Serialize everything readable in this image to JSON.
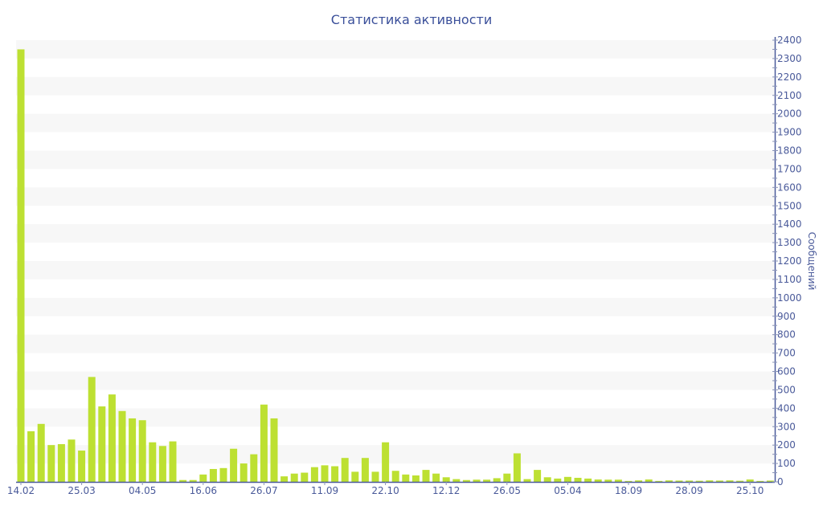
{
  "chart_data": {
    "type": "bar",
    "title": "Статистика активности",
    "ylabel": "Сообщений",
    "xlabel": "",
    "ylim": [
      0,
      2400
    ],
    "y_ticks": [
      0,
      100,
      200,
      300,
      400,
      500,
      600,
      700,
      800,
      900,
      1000,
      1100,
      1200,
      1300,
      1400,
      1500,
      1600,
      1700,
      1800,
      1900,
      2000,
      2100,
      2200,
      2300,
      2400
    ],
    "x_tick_labels": [
      {
        "index": 0,
        "label": "14.02"
      },
      {
        "index": 6,
        "label": "25.03"
      },
      {
        "index": 12,
        "label": "04.05"
      },
      {
        "index": 18,
        "label": "16.06"
      },
      {
        "index": 24,
        "label": "26.07"
      },
      {
        "index": 30,
        "label": "11.09"
      },
      {
        "index": 36,
        "label": "22.10"
      },
      {
        "index": 42,
        "label": "12.12"
      },
      {
        "index": 48,
        "label": "26.05"
      },
      {
        "index": 54,
        "label": "05.04"
      },
      {
        "index": 60,
        "label": "18.09"
      },
      {
        "index": 66,
        "label": "28.09"
      },
      {
        "index": 72,
        "label": "25.10"
      }
    ],
    "values": [
      2350,
      275,
      315,
      200,
      205,
      230,
      170,
      570,
      410,
      475,
      385,
      345,
      335,
      215,
      195,
      220,
      10,
      10,
      40,
      70,
      75,
      180,
      100,
      150,
      420,
      345,
      30,
      45,
      50,
      80,
      90,
      85,
      130,
      55,
      130,
      55,
      215,
      60,
      40,
      35,
      65,
      45,
      25,
      15,
      10,
      12,
      12,
      20,
      45,
      155,
      15,
      65,
      25,
      18,
      27,
      22,
      18,
      13,
      12,
      12,
      5,
      8,
      13,
      5,
      8,
      7,
      7,
      6,
      8,
      7,
      8,
      6,
      13,
      5,
      7
    ],
    "grid": "alternating horizontal bands",
    "y_axis_position": "right",
    "bar_color": "#bde032",
    "axis_color": "#4a5a9a",
    "band_color": "#f7f7f7"
  }
}
